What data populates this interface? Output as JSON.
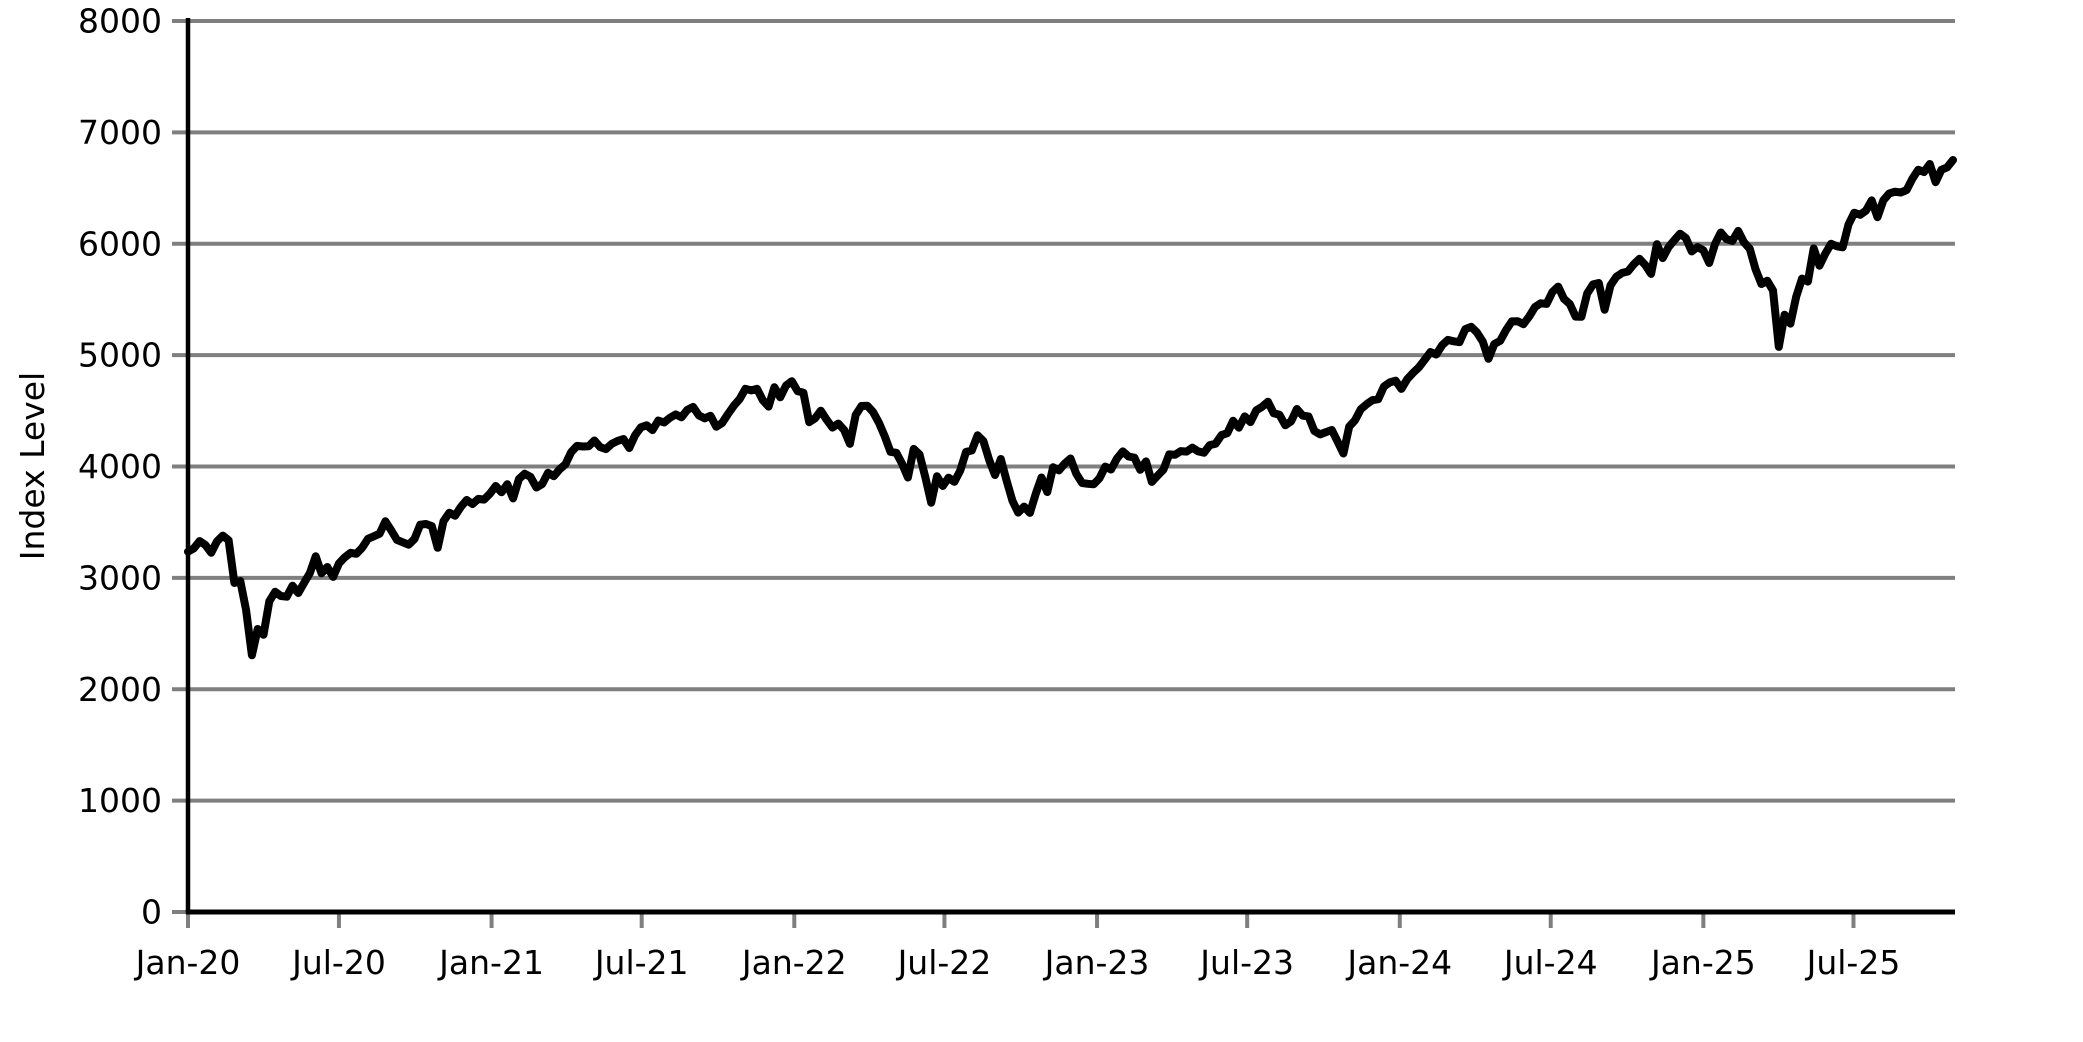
{
  "page": {
    "background": "#ffffff"
  },
  "chart_data": {
    "type": "line",
    "title": "",
    "xlabel": "",
    "ylabel": "Index Level",
    "legend": "none",
    "grid": "horizontal",
    "grid_color": "#7f7f7f",
    "axis_color": "#000000",
    "tick_color": "#7f7f7f",
    "line_color": "#000000",
    "background_color": "#ffffff",
    "ylim": [
      0,
      8000
    ],
    "y_ticks": [
      0,
      1000,
      2000,
      3000,
      4000,
      5000,
      6000,
      7000,
      8000
    ],
    "x_ticks": [
      {
        "label": "Jan-20",
        "date": "2020-01-01"
      },
      {
        "label": "Jul-20",
        "date": "2020-07-01"
      },
      {
        "label": "Jan-21",
        "date": "2021-01-01"
      },
      {
        "label": "Jul-21",
        "date": "2021-07-01"
      },
      {
        "label": "Jan-22",
        "date": "2022-01-01"
      },
      {
        "label": "Jul-22",
        "date": "2022-07-01"
      },
      {
        "label": "Jan-23",
        "date": "2023-01-01"
      },
      {
        "label": "Jul-23",
        "date": "2023-07-01"
      },
      {
        "label": "Jan-24",
        "date": "2024-01-01"
      },
      {
        "label": "Jul-24",
        "date": "2024-07-01"
      },
      {
        "label": "Jan-25",
        "date": "2025-01-01"
      },
      {
        "label": "Jul-25",
        "date": "2025-07-01"
      }
    ],
    "series": [
      {
        "name": "Index Level",
        "frequency": "weekly",
        "start_date": "2020-01-01",
        "values": [
          3235,
          3265,
          3330,
          3295,
          3225,
          3328,
          3380,
          3338,
          2954,
          2972,
          2711,
          2305,
          2541,
          2489,
          2790,
          2875,
          2837,
          2831,
          2930,
          2864,
          2955,
          3044,
          3194,
          3041,
          3098,
          3009,
          3130,
          3185,
          3225,
          3216,
          3271,
          3351,
          3373,
          3397,
          3508,
          3427,
          3341,
          3319,
          3298,
          3348,
          3477,
          3484,
          3465,
          3270,
          3509,
          3585,
          3558,
          3638,
          3699,
          3663,
          3709,
          3703,
          3756,
          3825,
          3768,
          3841,
          3714,
          3887,
          3935,
          3907,
          3811,
          3842,
          3943,
          3913,
          3975,
          4020,
          4129,
          4185,
          4180,
          4181,
          4233,
          4174,
          4156,
          4204,
          4230,
          4247,
          4166,
          4281,
          4352,
          4370,
          4327,
          4412,
          4395,
          4437,
          4468,
          4442,
          4509,
          4535,
          4459,
          4433,
          4455,
          4357,
          4391,
          4471,
          4545,
          4605,
          4698,
          4683,
          4698,
          4595,
          4538,
          4712,
          4621,
          4726,
          4766,
          4677,
          4663,
          4398,
          4432,
          4501,
          4419,
          4349,
          4385,
          4329,
          4204,
          4463,
          4543,
          4546,
          4488,
          4393,
          4272,
          4132,
          4123,
          4024,
          3901,
          4158,
          4109,
          3901,
          3675,
          3912,
          3825,
          3899,
          3863,
          3962,
          4130,
          4145,
          4280,
          4228,
          4058,
          3924,
          4067,
          3873,
          3693,
          3586,
          3640,
          3583,
          3753,
          3901,
          3771,
          3993,
          3965,
          4026,
          4072,
          3934,
          3852,
          3845,
          3840,
          3895,
          3999,
          3973,
          4071,
          4136,
          4090,
          4079,
          3970,
          4046,
          3862,
          3917,
          3971,
          4109,
          4105,
          4138,
          4134,
          4169,
          4136,
          4124,
          4192,
          4205,
          4282,
          4299,
          4410,
          4348,
          4450,
          4399,
          4505,
          4536,
          4582,
          4478,
          4464,
          4370,
          4406,
          4516,
          4457,
          4450,
          4320,
          4288,
          4309,
          4328,
          4224,
          4117,
          4358,
          4415,
          4514,
          4559,
          4595,
          4604,
          4719,
          4755,
          4770,
          4697,
          4784,
          4840,
          4891,
          4959,
          5027,
          5006,
          5089,
          5137,
          5124,
          5117,
          5234,
          5254,
          5204,
          5123,
          4967,
          5100,
          5128,
          5223,
          5303,
          5305,
          5278,
          5347,
          5432,
          5465,
          5460,
          5567,
          5615,
          5505,
          5459,
          5346,
          5344,
          5554,
          5635,
          5648,
          5408,
          5626,
          5703,
          5738,
          5751,
          5815,
          5865,
          5808,
          5729,
          5996,
          5871,
          5969,
          6032,
          6090,
          6051,
          5931,
          5971,
          5942,
          5827,
          5997,
          6101,
          6041,
          6026,
          6115,
          6013,
          5955,
          5770,
          5639,
          5668,
          5581,
          5074,
          5363,
          5283,
          5525,
          5687,
          5660,
          5958,
          5803,
          5912,
          6000,
          5977,
          5968,
          6173,
          6279,
          6260,
          6297,
          6389,
          6238,
          6389,
          6450,
          6467,
          6460,
          6482,
          6584,
          6664,
          6644,
          6716,
          6553,
          6664,
          6686,
          6752
        ]
      }
    ]
  }
}
